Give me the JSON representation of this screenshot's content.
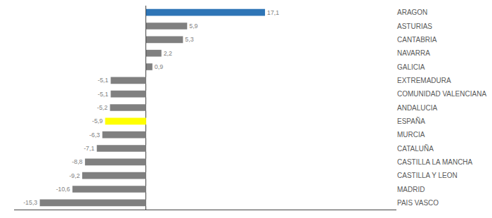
{
  "chart_data": {
    "type": "bar",
    "orientation": "horizontal",
    "categories": [
      "ARAGON",
      "ASTURIAS",
      "CANTABRIA",
      "NAVARRA",
      "GALICIA",
      "EXTREMADURA",
      "COMUNIDAD VALENCIANA",
      "ANDALUCIA",
      "ESPAÑA",
      "MURCIA",
      "CATALUÑA",
      "CASTILLA LA MANCHA",
      "CASTILLA Y LEON",
      "MADRID",
      "PAIS VASCO"
    ],
    "values": [
      17.1,
      5.9,
      5.3,
      2.2,
      0.9,
      -5.1,
      -5.1,
      -5.2,
      -5.9,
      -6.3,
      -7.1,
      -8.8,
      -9.2,
      -10.6,
      -15.3
    ],
    "value_labels": [
      "17,1",
      "5,9",
      "5,3",
      "2,2",
      "0,9",
      "-5,1",
      "-5,1",
      "-5,2",
      "-5,9",
      "-6,3",
      "-7,1",
      "-8,8",
      "-9,2",
      "-10,6",
      "-15,3"
    ],
    "colors": [
      "#2E75B6",
      "#808080",
      "#808080",
      "#808080",
      "#808080",
      "#808080",
      "#808080",
      "#808080",
      "#FFFF00",
      "#808080",
      "#808080",
      "#808080",
      "#808080",
      "#808080",
      "#808080"
    ],
    "xlim": [
      -19,
      36
    ],
    "xticks": [],
    "data_labels": true,
    "tick_labels": "y",
    "grid": false
  }
}
